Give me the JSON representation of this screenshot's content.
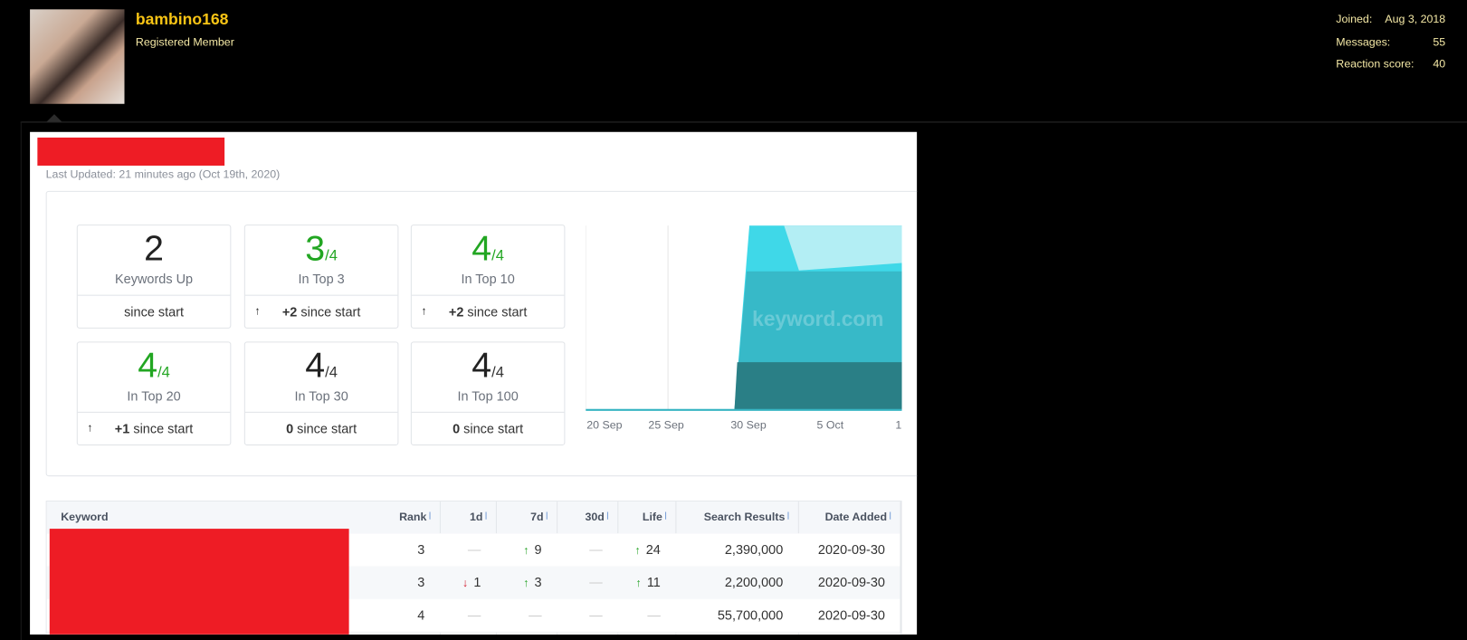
{
  "user": {
    "name": "bambino168",
    "role": "Registered Member",
    "stats": [
      {
        "label": "Joined:",
        "value": "Aug 3, 2018"
      },
      {
        "label": "Messages:",
        "value": "55"
      },
      {
        "label": "Reaction score:",
        "value": "40"
      }
    ]
  },
  "report": {
    "last_updated": "Last Updated: 21 minutes ago (Oct 19th, 2020)",
    "cards": [
      {
        "value": "2",
        "label": "Keywords Up",
        "footer": "since start"
      },
      {
        "value": "3",
        "total": "/4",
        "label": "In Top 3",
        "trend": "up",
        "delta": "+2",
        "footer": "since start",
        "color": "#22a622"
      },
      {
        "value": "4",
        "total": "/4",
        "label": "In Top 10",
        "trend": "up",
        "delta": "+2",
        "footer": "since start",
        "color": "#22a622"
      },
      {
        "value": "4",
        "total": "/4",
        "label": "In Top 20",
        "trend": "up",
        "delta": "+1",
        "footer": "since start",
        "color": "#22a622"
      },
      {
        "value": "4",
        "total": "/4",
        "label": "In Top 30",
        "delta": "0",
        "footer": "since start"
      },
      {
        "value": "4",
        "total": "/4",
        "label": "In Top 100",
        "delta": "0",
        "footer": "since start"
      }
    ],
    "chart": {
      "watermark": "keyword.com",
      "x_labels": [
        "20 Sep",
        "25 Sep",
        "30 Sep",
        "5 Oct",
        "1"
      ]
    },
    "table": {
      "columns": [
        "Keyword",
        "Rank",
        "1d",
        "7d",
        "30d",
        "Life",
        "Search Results",
        "Date Added"
      ],
      "rows": [
        [
          null,
          "3",
          "—",
          {
            "trend": "up",
            "text": "9"
          },
          "—",
          {
            "trend": "up",
            "text": "24"
          },
          "2,390,000",
          "2020-09-30"
        ],
        [
          null,
          "3",
          {
            "trend": "down",
            "text": "1"
          },
          {
            "trend": "up",
            "text": "3"
          },
          "—",
          {
            "trend": "up",
            "text": "11"
          },
          "2,200,000",
          "2020-09-30"
        ],
        [
          null,
          "4",
          "—",
          "—",
          "—",
          "—",
          "55,700,000",
          "2020-09-30"
        ]
      ]
    }
  }
}
